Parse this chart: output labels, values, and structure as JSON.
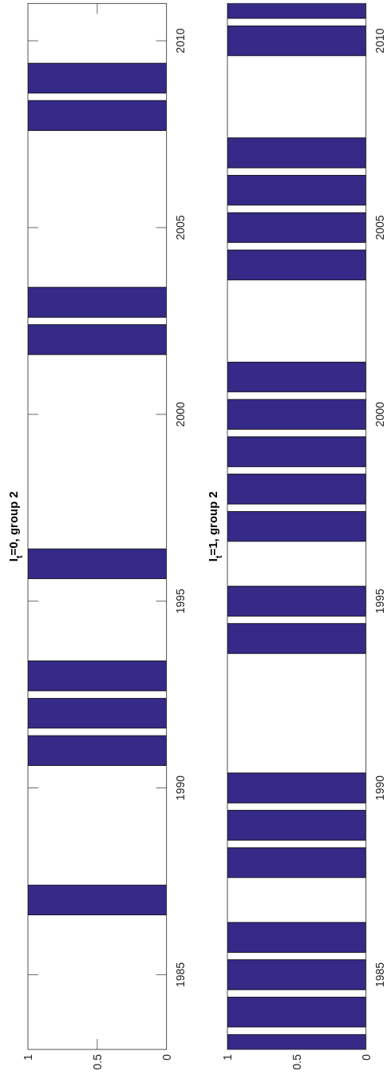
{
  "chart_data": [
    {
      "type": "bar",
      "orientation": "horizontal",
      "title": "I$_{t}$=0, group 2",
      "x": [
        1987,
        1991,
        1992,
        1993,
        1996,
        2002,
        2003,
        2008,
        2009
      ],
      "values": [
        1,
        1,
        1,
        1,
        1,
        1,
        1,
        1,
        1
      ],
      "color": "#352a87",
      "xlim": [
        1,
        0
      ],
      "xticks": [
        0,
        0.5,
        1
      ],
      "ylim": [
        1983,
        2011
      ],
      "yticks": [
        1985,
        1990,
        1995,
        2000,
        2005,
        2010
      ]
    },
    {
      "type": "bar",
      "orientation": "horizontal",
      "title": "I$_{t}$=1, group 2",
      "x": [
        1983,
        1984,
        1985,
        1986,
        1988,
        1989,
        1990,
        1994,
        1995,
        1997,
        1998,
        1999,
        2000,
        2001,
        2004,
        2005,
        2006,
        2007,
        2010,
        2011
      ],
      "values": [
        1,
        1,
        1,
        1,
        1,
        1,
        1,
        1,
        1,
        1,
        1,
        1,
        1,
        1,
        1,
        1,
        1,
        1,
        1,
        1
      ],
      "color": "#352a87",
      "xlim": [
        1,
        0
      ],
      "xticks": [
        0,
        0.5,
        1
      ],
      "ylim": [
        1983,
        2011
      ],
      "yticks": [
        1985,
        1990,
        1995,
        2000,
        2005,
        2010
      ]
    }
  ]
}
